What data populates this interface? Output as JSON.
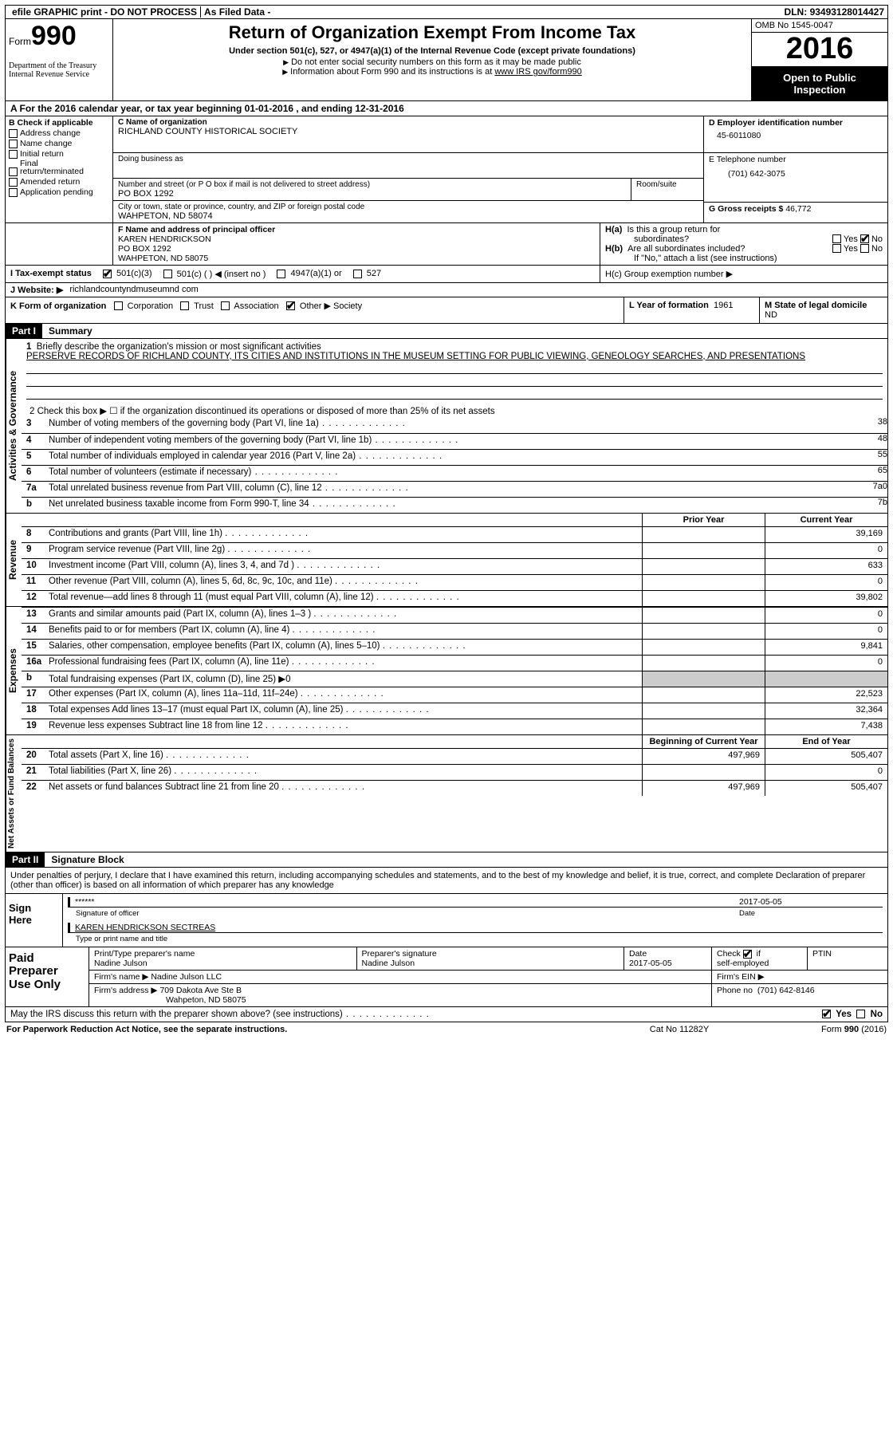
{
  "topbar": {
    "efile": "efile GRAPHIC print - DO NOT PROCESS",
    "asfiled": "As Filed Data -",
    "dln_label": "DLN:",
    "dln": "93493128014427"
  },
  "header": {
    "form_word": "Form",
    "form_no": "990",
    "treasury1": "Department of the Treasury",
    "treasury2": "Internal Revenue Service",
    "title": "Return of Organization Exempt From Income Tax",
    "subtitle": "Under section 501(c), 527, or 4947(a)(1) of the Internal Revenue Code (except private foundations)",
    "note1": "Do not enter social security numbers on this form as it may be made public",
    "note2": "Information about Form 990 and its instructions is at ",
    "note2_link": "www IRS gov/form990",
    "omb": "OMB No  1545-0047",
    "year": "2016",
    "open1": "Open to Public",
    "open2": "Inspection"
  },
  "rowA": "A   For the 2016 calendar year, or tax year beginning 01-01-2016   , and ending 12-31-2016",
  "B": {
    "label": "B Check if applicable",
    "opts": [
      "Address change",
      "Name change",
      "Initial return",
      "Final return/terminated",
      "Amended return",
      "Application pending"
    ]
  },
  "C": {
    "name_label": "C Name of organization",
    "name": "RICHLAND COUNTY HISTORICAL SOCIETY",
    "dba_label": "Doing business as",
    "dba": "",
    "street_label": "Number and street (or P O  box if mail is not delivered to street address)",
    "room_label": "Room/suite",
    "street": "PO BOX 1292",
    "city_label": "City or town, state or province, country, and ZIP or foreign postal code",
    "city": "WAHPETON, ND  58074"
  },
  "D": {
    "label": "D Employer identification number",
    "value": "45-6011080"
  },
  "E": {
    "label": "E Telephone number",
    "value": "(701) 642-3075"
  },
  "G": {
    "label": "G Gross receipts $",
    "value": "46,772"
  },
  "F": {
    "label": "F  Name and address of principal officer",
    "name": "KAREN HENDRICKSON",
    "street": "PO BOX 1292",
    "city": "WAHPETON, ND   58075"
  },
  "H": {
    "a_label": "H(a)  Is this a group return for",
    "a_label2": "subordinates?",
    "b_label": "H(b)  Are all subordinates included?",
    "b_note": "If \"No,\" attach a list  (see instructions)",
    "c_label": "H(c)  Group exemption number ▶",
    "yes": "Yes",
    "no": "No"
  },
  "I": {
    "label": "I   Tax-exempt status",
    "o1": "501(c)(3)",
    "o2": "501(c) (   ) ◀ (insert no )",
    "o3": "4947(a)(1) or",
    "o4": "527"
  },
  "J": {
    "label": "J   Website: ▶",
    "value": "richlandcountyndmuseumnd com"
  },
  "K": {
    "label": "K Form of organization",
    "o1": "Corporation",
    "o2": "Trust",
    "o3": "Association",
    "o4": "Other ▶",
    "other_val": "Society"
  },
  "L": {
    "label": "L Year of formation",
    "value": "1961"
  },
  "M": {
    "label": "M State of legal domicile",
    "value": "ND"
  },
  "partI": {
    "part": "Part I",
    "title": "Summary"
  },
  "summary": {
    "l1_label": "1  Briefly describe the organization's mission or most significant activities",
    "mission": "PERSERVE RECORDS OF RICHLAND COUNTY, ITS CITIES AND INSTITUTIONS IN THE MUSEUM SETTING FOR PUBLIC VIEWING, GENEOLOGY SEARCHES, AND PRESENTATIONS",
    "l2": "2   Check this box ▶ ☐  if the organization discontinued its operations or disposed of more than 25% of its net assets",
    "lines_top": [
      {
        "n": "3",
        "t": "Number of voting members of the governing body (Part VI, line 1a)",
        "k": "3",
        "v": "8"
      },
      {
        "n": "4",
        "t": "Number of independent voting members of the governing body (Part VI, line 1b)",
        "k": "4",
        "v": "8"
      },
      {
        "n": "5",
        "t": "Total number of individuals employed in calendar year 2016 (Part V, line 2a)",
        "k": "5",
        "v": "5"
      },
      {
        "n": "6",
        "t": "Total number of volunteers (estimate if necessary)",
        "k": "6",
        "v": "5"
      },
      {
        "n": "7a",
        "t": "Total unrelated business revenue from Part VIII, column (C), line 12",
        "k": "7a",
        "v": "0"
      },
      {
        "n": "b",
        "t": "Net unrelated business taxable income from Form 990-T, line 34",
        "k": "7b",
        "v": ""
      }
    ],
    "hdr_prior": "Prior Year",
    "hdr_current": "Current Year",
    "revenue": [
      {
        "n": "8",
        "t": "Contributions and grants (Part VIII, line 1h)",
        "p": "",
        "c": "39,169"
      },
      {
        "n": "9",
        "t": "Program service revenue (Part VIII, line 2g)",
        "p": "",
        "c": "0"
      },
      {
        "n": "10",
        "t": "Investment income (Part VIII, column (A), lines 3, 4, and 7d )",
        "p": "",
        "c": "633"
      },
      {
        "n": "11",
        "t": "Other revenue (Part VIII, column (A), lines 5, 6d, 8c, 9c, 10c, and 11e)",
        "p": "",
        "c": "0"
      },
      {
        "n": "12",
        "t": "Total revenue—add lines 8 through 11 (must equal Part VIII, column (A), line 12)",
        "p": "",
        "c": "39,802"
      }
    ],
    "expenses": [
      {
        "n": "13",
        "t": "Grants and similar amounts paid (Part IX, column (A), lines 1–3 )",
        "p": "",
        "c": "0"
      },
      {
        "n": "14",
        "t": "Benefits paid to or for members (Part IX, column (A), line 4)",
        "p": "",
        "c": "0"
      },
      {
        "n": "15",
        "t": "Salaries, other compensation, employee benefits (Part IX, column (A), lines 5–10)",
        "p": "",
        "c": "9,841"
      },
      {
        "n": "16a",
        "t": "Professional fundraising fees (Part IX, column (A), line 11e)",
        "p": "",
        "c": "0"
      },
      {
        "n": "b",
        "t": "Total fundraising expenses (Part IX, column (D), line 25) ▶0",
        "p": "—",
        "c": "—"
      },
      {
        "n": "17",
        "t": "Other expenses (Part IX, column (A), lines 11a–11d, 11f–24e)",
        "p": "",
        "c": "22,523"
      },
      {
        "n": "18",
        "t": "Total expenses  Add lines 13–17 (must equal Part IX, column (A), line 25)",
        "p": "",
        "c": "32,364"
      },
      {
        "n": "19",
        "t": "Revenue less expenses  Subtract line 18 from line 12",
        "p": "",
        "c": "7,438"
      }
    ],
    "hdr_begin": "Beginning of Current Year",
    "hdr_end": "End of Year",
    "net": [
      {
        "n": "20",
        "t": "Total assets (Part X, line 16)",
        "p": "497,969",
        "c": "505,407"
      },
      {
        "n": "21",
        "t": "Total liabilities (Part X, line 26)",
        "p": "",
        "c": "0"
      },
      {
        "n": "22",
        "t": "Net assets or fund balances  Subtract line 21 from line 20",
        "p": "497,969",
        "c": "505,407"
      }
    ]
  },
  "partII": {
    "part": "Part II",
    "title": "Signature Block"
  },
  "sig": {
    "perjury": "Under penalties of perjury, I declare that I have examined this return, including accompanying schedules and statements, and to the best of my knowledge and belief, it is true, correct, and complete  Declaration of preparer (other than officer) is based on all information of which preparer has any knowledge",
    "sign_here": "Sign Here",
    "stars": "******",
    "date1": "2017-05-05",
    "sig_of_officer": "Signature of officer",
    "date_lbl": "Date",
    "officer_name": "KAREN HENDRICKSON SECTREAS",
    "type_name": "Type or print name and title",
    "paid": "Paid Preparer Use Only",
    "prep_name_lbl": "Print/Type preparer's name",
    "prep_name": "Nadine Julson",
    "prep_sig_lbl": "Preparer's signature",
    "prep_sig": "Nadine Julson",
    "date2_lbl": "Date",
    "date2": "2017-05-05",
    "self_emp": "Check ☑ if self-employed",
    "ptin": "PTIN",
    "firm_name_lbl": "Firm's name    ▶",
    "firm_name": "Nadine Julson LLC",
    "firm_ein": "Firm's EIN ▶",
    "firm_addr_lbl": "Firm's address ▶",
    "firm_addr1": "709 Dakota Ave Ste B",
    "firm_addr2": "Wahpeton, ND  58075",
    "phone_lbl": "Phone no",
    "phone": "(701) 642-8146",
    "discuss": "May the IRS discuss this return with the preparer shown above? (see instructions)"
  },
  "footer": {
    "left": "For Paperwork Reduction Act Notice, see the separate instructions.",
    "mid": "Cat No  11282Y",
    "right": "Form 990 (2016)"
  },
  "vlabels": {
    "ag": "Activities & Governance",
    "rev": "Revenue",
    "exp": "Expenses",
    "net": "Net Assets or Fund Balances"
  }
}
